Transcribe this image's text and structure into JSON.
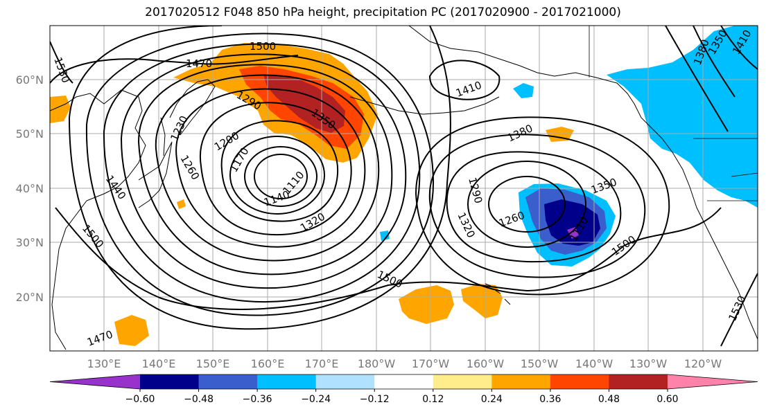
{
  "title": "2017020512 F048 850 hPa height, precipitation PC (2017020900 - 2017021000)",
  "lat_labels": [
    "60°N",
    "50°N",
    "40°N",
    "30°N",
    "20°N"
  ],
  "lon_labels": [
    "130°E",
    "140°E",
    "150°E",
    "160°E",
    "170°E",
    "180°W",
    "170°W",
    "160°W",
    "150°W",
    "140°W",
    "130°W",
    "120°W"
  ],
  "contour_labels": [
    "1530",
    "1470",
    "1500",
    "1290",
    "1350",
    "1230",
    "1200",
    "1260",
    "1170",
    "1140",
    "1110",
    "1320",
    "1410",
    "1380",
    "1440",
    "1500",
    "1290",
    "1320",
    "1260",
    "1350",
    "1110",
    "1500",
    "1500",
    "1530",
    "1470",
    "1380",
    "1350",
    "1410"
  ],
  "colorbar": {
    "ticks": [
      "−0.60",
      "−0.48",
      "−0.36",
      "−0.24",
      "−0.12",
      "0.12",
      "0.24",
      "0.36",
      "0.48",
      "0.60"
    ],
    "colors": [
      "#9932cc",
      "#00008b",
      "#3a5fcd",
      "#00bfff",
      "#b0e2ff",
      "#ffffff",
      "#ffec8b",
      "#ffa500",
      "#ff4500",
      "#b22222",
      "#ff82ab"
    ]
  }
}
